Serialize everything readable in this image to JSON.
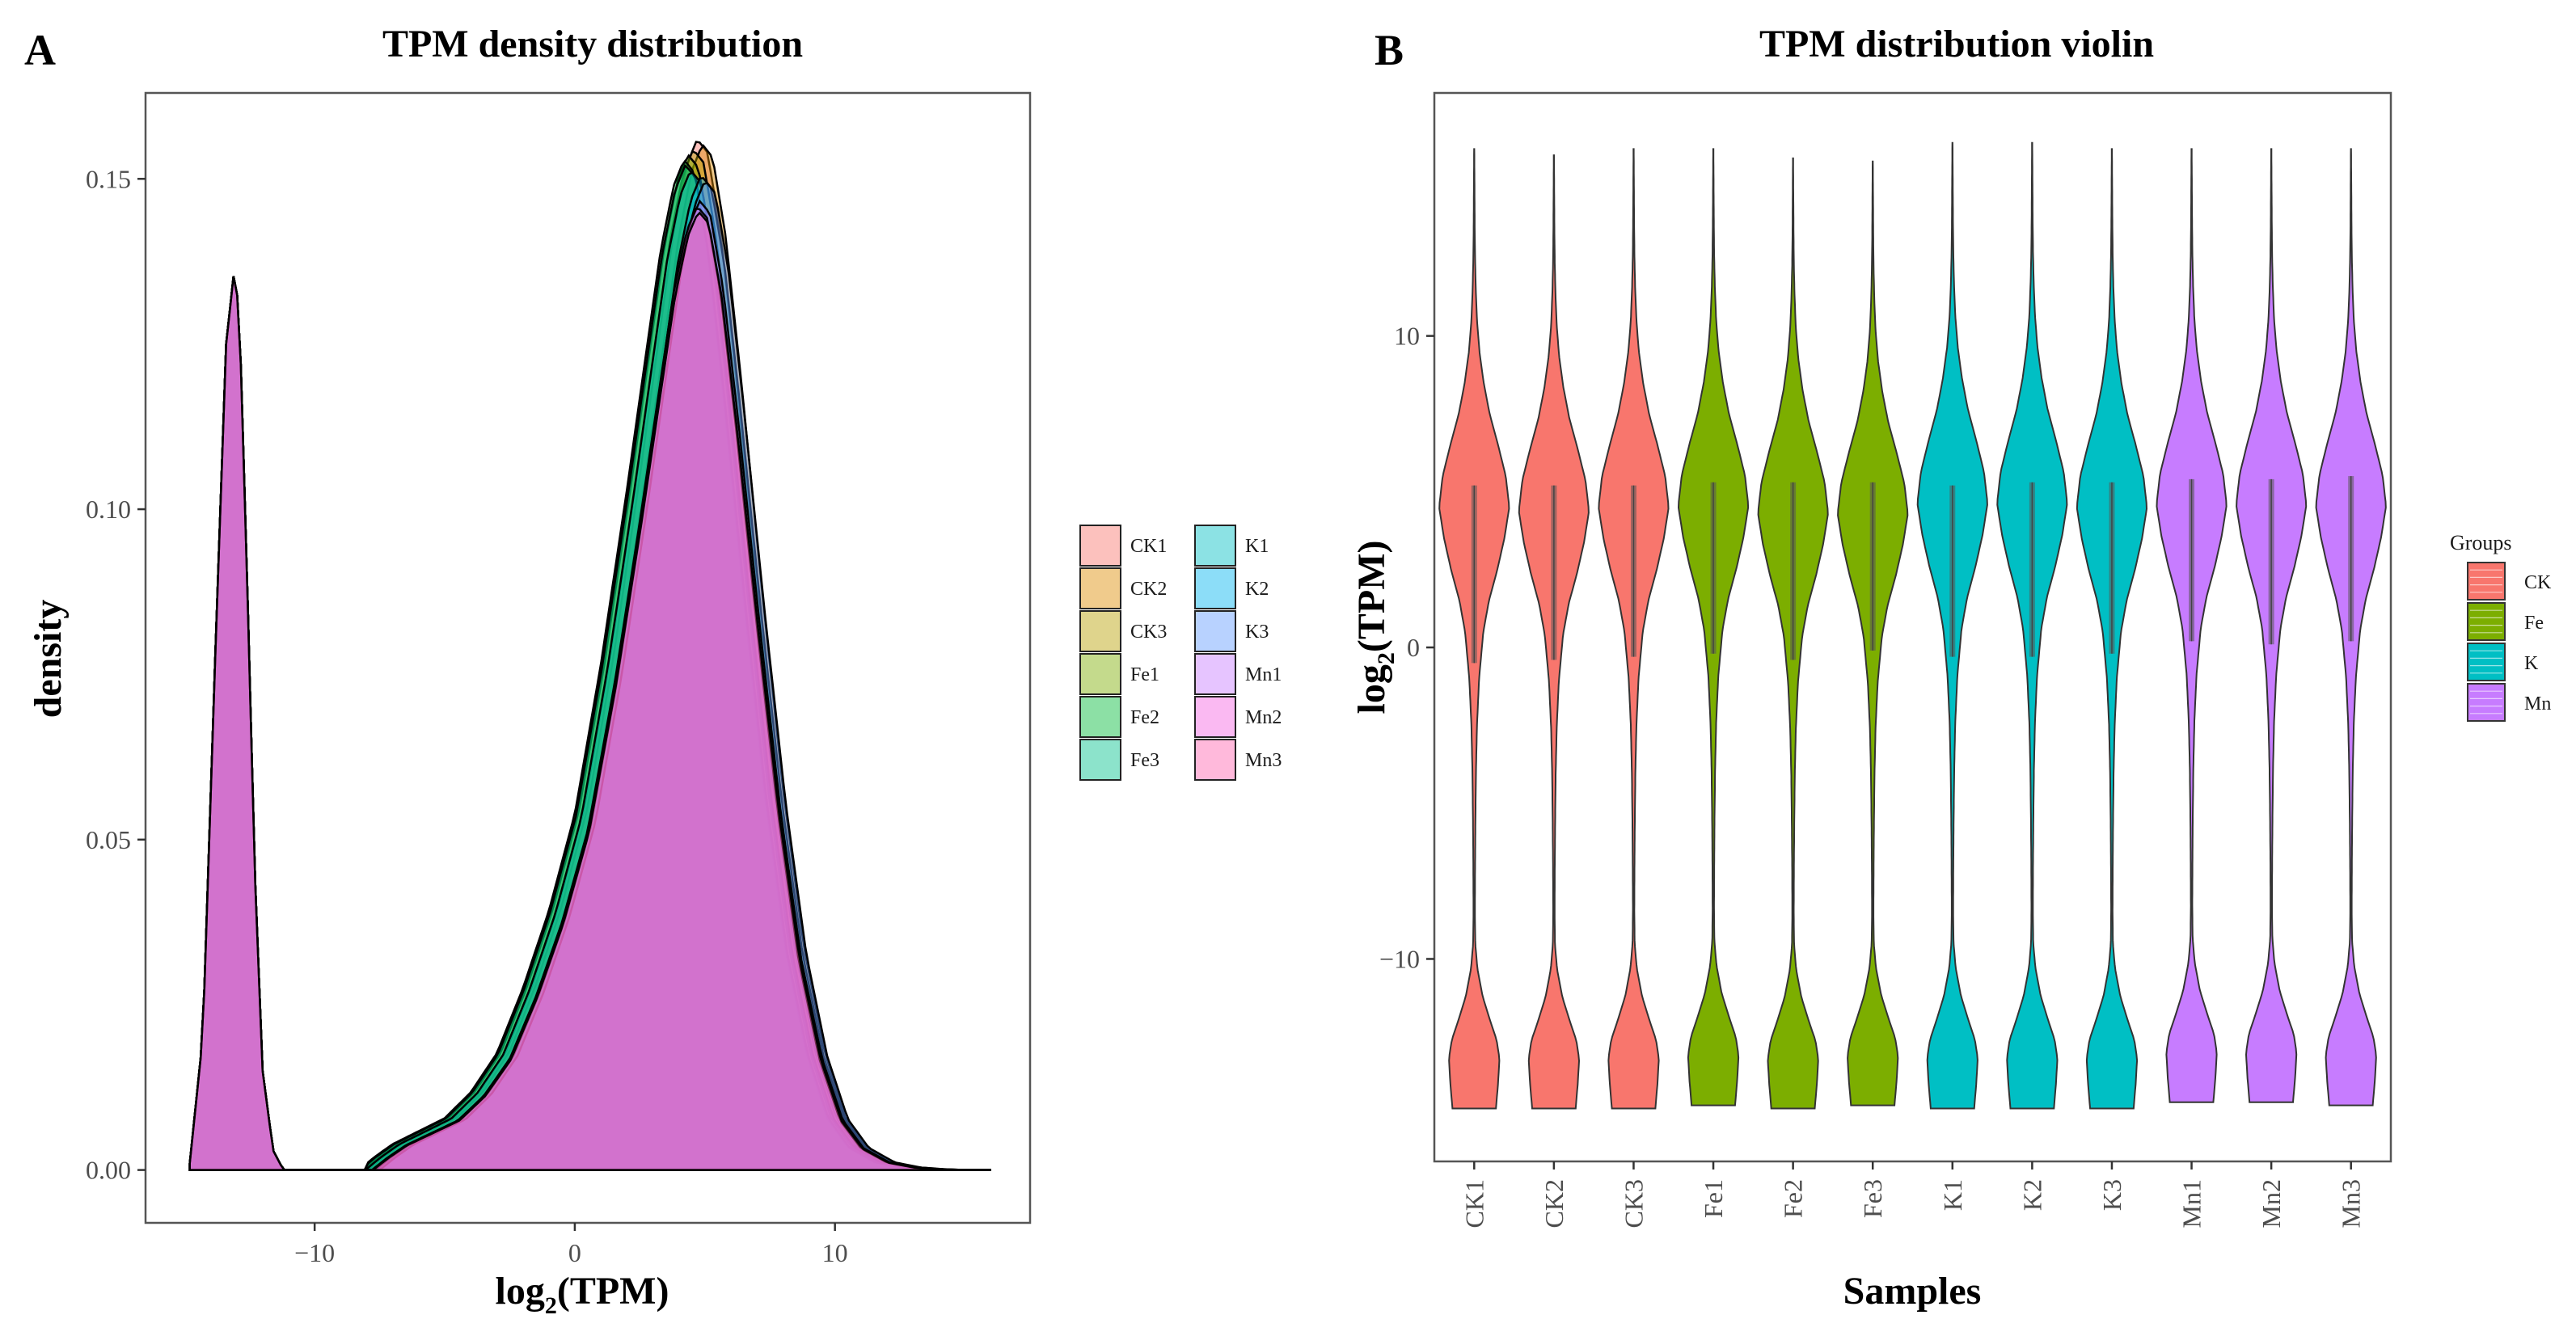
{
  "chart_data": [
    {
      "panel": "A",
      "type": "area",
      "title": "TPM density distribution",
      "xlabel_base": "log",
      "xlabel_sub": "2",
      "xlabel_rest": "(TPM)",
      "ylabel": "density",
      "xlim": [
        -16.5,
        17.5
      ],
      "ylim": [
        -0.008,
        0.163
      ],
      "x_ticks": [
        -10,
        0,
        10
      ],
      "x_tick_labels": [
        "−10",
        "0",
        "10"
      ],
      "y_ticks": [
        0.0,
        0.05,
        0.1,
        0.15
      ],
      "y_tick_labels": [
        "0.00",
        "0.05",
        "0.10",
        "0.15"
      ],
      "grid": false,
      "legend_position": "right",
      "series": [
        {
          "name": "CK1",
          "color": "#F8766D",
          "offset": 0.0,
          "scale": 1.0
        },
        {
          "name": "CK2",
          "color": "#DE8C00",
          "offset": 0.2,
          "scale": 0.995
        },
        {
          "name": "CK3",
          "color": "#B79F00",
          "offset": -0.15,
          "scale": 0.99
        },
        {
          "name": "Fe1",
          "color": "#7CAE00",
          "offset": -0.35,
          "scale": 0.985
        },
        {
          "name": "Fe2",
          "color": "#00BA38",
          "offset": -0.5,
          "scale": 0.98
        },
        {
          "name": "Fe3",
          "color": "#00C08B",
          "offset": -0.45,
          "scale": 0.975
        },
        {
          "name": "K1",
          "color": "#00BFC4",
          "offset": -0.25,
          "scale": 0.97
        },
        {
          "name": "K2",
          "color": "#00B4F0",
          "offset": 0.15,
          "scale": 0.965
        },
        {
          "name": "K3",
          "color": "#619CFF",
          "offset": 0.3,
          "scale": 0.96
        },
        {
          "name": "Mn1",
          "color": "#C77CFF",
          "offset": 0.1,
          "scale": 0.94
        },
        {
          "name": "Mn2",
          "color": "#F564E3",
          "offset": 0.0,
          "scale": 0.935
        },
        {
          "name": "Mn3",
          "color": "#FF64B0",
          "offset": 0.05,
          "scale": 0.93
        }
      ],
      "density_profile": {
        "x": [
          -14.8,
          -14.3,
          -13.8,
          -13.4,
          -13.1,
          -12.9,
          -12.6,
          -12.3,
          -12.0,
          -11.6,
          -11.2,
          -10.5,
          -9.0,
          -7.8,
          -7.2,
          -6.5,
          -5.5,
          -4.5,
          -3.5,
          -2.5,
          -1.5,
          -0.5,
          0.5,
          1.5,
          2.5,
          3.2,
          3.8,
          4.3,
          4.7,
          5.1,
          5.6,
          6.2,
          7.0,
          7.8,
          8.6,
          9.4,
          10.2,
          11.0,
          12.0,
          13.0,
          14.0,
          15.0,
          16.0
        ],
        "y": [
          0.001,
          0.02,
          0.08,
          0.125,
          0.136,
          0.13,
          0.09,
          0.045,
          0.015,
          0.003,
          0.0,
          0.0,
          0.0,
          0.0,
          0.002,
          0.004,
          0.006,
          0.008,
          0.012,
          0.018,
          0.028,
          0.04,
          0.055,
          0.078,
          0.105,
          0.125,
          0.142,
          0.152,
          0.156,
          0.154,
          0.142,
          0.12,
          0.088,
          0.058,
          0.034,
          0.018,
          0.008,
          0.0035,
          0.0012,
          0.0004,
          0.0001,
          0.0,
          0.0
        ]
      }
    },
    {
      "panel": "B",
      "type": "violin",
      "title": "TPM distribution violin",
      "xlabel": "Samples",
      "ylabel_base": "log",
      "ylabel_sub": "2",
      "ylabel_rest": "(TPM)",
      "ylim": [
        -16.5,
        17.8
      ],
      "y_ticks": [
        -10,
        0,
        10
      ],
      "y_tick_labels": [
        "−10",
        "0",
        "10"
      ],
      "categories": [
        "CK1",
        "CK2",
        "CK3",
        "Fe1",
        "Fe2",
        "Fe3",
        "K1",
        "K2",
        "K3",
        "Mn1",
        "Mn2",
        "Mn3"
      ],
      "category_groups": [
        "CK",
        "CK",
        "CK",
        "Fe",
        "Fe",
        "Fe",
        "K",
        "K",
        "K",
        "Mn",
        "Mn",
        "Mn"
      ],
      "max": [
        16.0,
        15.8,
        16.0,
        16.0,
        15.7,
        15.6,
        16.2,
        16.2,
        16.0,
        16.0,
        16.0,
        16.0
      ],
      "min": [
        -14.8,
        -14.8,
        -14.8,
        -14.7,
        -14.8,
        -14.7,
        -14.8,
        -14.8,
        -14.8,
        -14.6,
        -14.6,
        -14.7
      ],
      "q1": [
        -0.5,
        -0.4,
        -0.3,
        -0.2,
        -0.4,
        -0.1,
        -0.3,
        -0.3,
        -0.2,
        0.2,
        0.1,
        0.2
      ],
      "median": [
        3.6,
        3.6,
        3.6,
        3.7,
        3.7,
        3.8,
        3.7,
        3.7,
        3.8,
        3.9,
        3.9,
        3.9
      ],
      "q3": [
        5.2,
        5.2,
        5.2,
        5.3,
        5.3,
        5.3,
        5.2,
        5.3,
        5.3,
        5.4,
        5.4,
        5.5
      ],
      "legend": {
        "title": "Groups",
        "position": "right",
        "entries": [
          {
            "name": "CK",
            "color": "#F8766D"
          },
          {
            "name": "Fe",
            "color": "#7CAE00"
          },
          {
            "name": "K",
            "color": "#00BFC4"
          },
          {
            "name": "Mn",
            "color": "#C77CFF"
          }
        ]
      },
      "violin_profile": {
        "y": [
          -14.8,
          -14.0,
          -13.2,
          -12.6,
          -12.0,
          -11.2,
          -10.3,
          -9.5,
          -8.5,
          -7.0,
          -5.5,
          -4.0,
          -2.5,
          -1.0,
          0.5,
          1.5,
          2.5,
          3.5,
          4.5,
          5.5,
          6.5,
          7.5,
          8.5,
          9.5,
          10.5,
          11.5,
          12.5,
          13.5,
          14.5,
          15.3,
          16.0
        ],
        "width": [
          0.62,
          0.68,
          0.72,
          0.64,
          0.46,
          0.24,
          0.09,
          0.03,
          0.02,
          0.025,
          0.035,
          0.05,
          0.08,
          0.14,
          0.26,
          0.42,
          0.66,
          0.86,
          1.0,
          0.9,
          0.68,
          0.44,
          0.27,
          0.15,
          0.08,
          0.045,
          0.025,
          0.015,
          0.01,
          0.006,
          0.003
        ]
      }
    }
  ]
}
